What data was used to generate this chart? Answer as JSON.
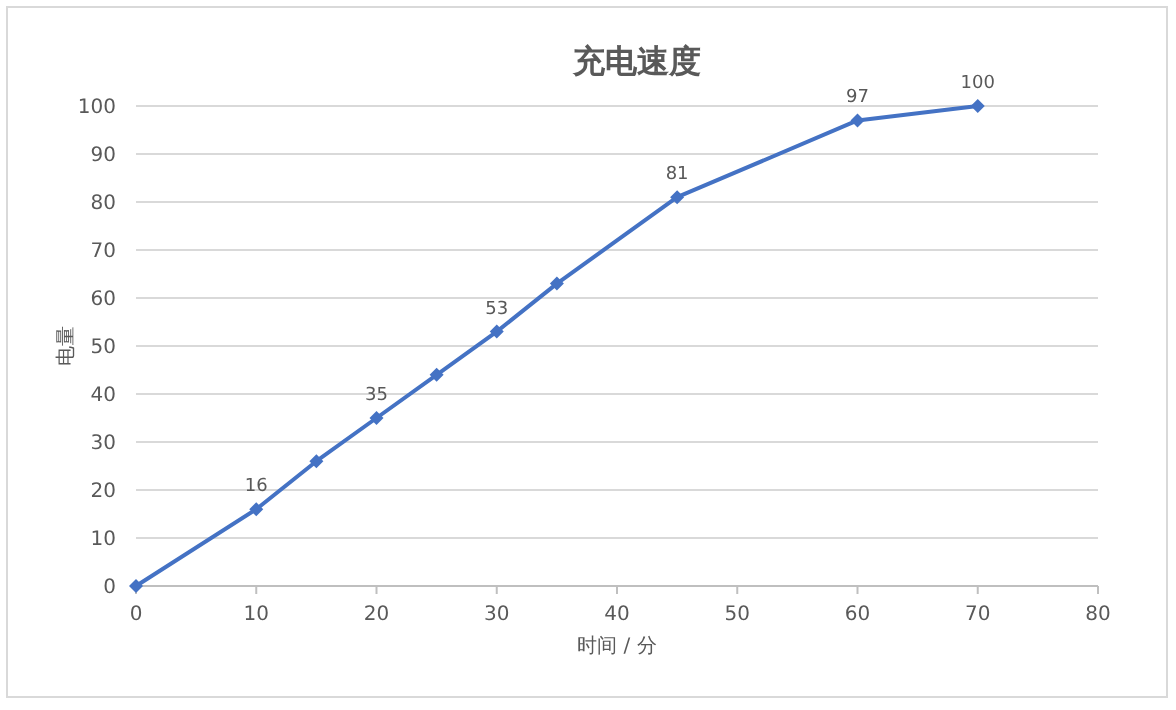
{
  "chart_data": {
    "type": "line",
    "title": "充电速度",
    "xlabel": "时间 / 分",
    "ylabel": "电量",
    "x": [
      0,
      10,
      15,
      20,
      25,
      30,
      35,
      45,
      60,
      70
    ],
    "series": [
      {
        "color": "#4472c4",
        "values": [
          0,
          16,
          26,
          35,
          44,
          53,
          63,
          81,
          97,
          100
        ],
        "value_labels": [
          null,
          "16",
          null,
          "35",
          null,
          "53",
          null,
          "81",
          "97",
          "100"
        ]
      }
    ],
    "xlim": [
      0,
      80
    ],
    "xticks": [
      0,
      10,
      20,
      30,
      40,
      50,
      60,
      70,
      80
    ],
    "ylim": [
      0,
      100
    ],
    "yticks": [
      0,
      10,
      20,
      30,
      40,
      50,
      60,
      70,
      80,
      90,
      100
    ],
    "grid": "y",
    "marker": "diamond",
    "line_style": "solid"
  }
}
